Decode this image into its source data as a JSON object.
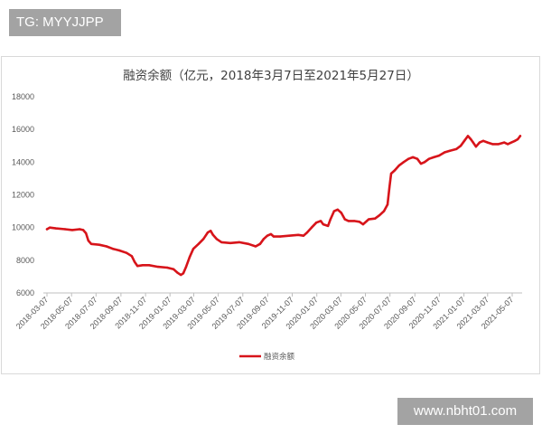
{
  "watermarks": {
    "top_left": "TG: MYYJJPP",
    "bottom_right": "www.nbht01.com"
  },
  "colors": {
    "series_line": "#d7141a",
    "watermark_bg": "#a3a3a3",
    "watermark_text": "#ffffff"
  },
  "chart_data": {
    "type": "line",
    "title": "融资余额（亿元，2018年3月7日至2021年5月27日）",
    "xlabel": "",
    "ylabel": "",
    "xlim": [
      "2018-03-07",
      "2021-05-27"
    ],
    "ylim": [
      6000,
      18000
    ],
    "grid": false,
    "legend": "bottom",
    "ytick_labels": [
      "6000",
      "8000",
      "10000",
      "12000",
      "14000",
      "16000",
      "18000"
    ],
    "xtick_labels": [
      "2018-03-07",
      "2018-05-07",
      "2018-07-07",
      "2018-09-07",
      "2018-11-07",
      "2019-01-07",
      "2019-03-07",
      "2019-05-07",
      "2019-07-07",
      "2019-09-07",
      "2019-11-07",
      "2020-01-07",
      "2020-03-07",
      "2020-05-07",
      "2020-07-07",
      "2020-09-07",
      "2020-11-07",
      "2021-01-07",
      "2021-03-07",
      "2021-05-07"
    ],
    "series": [
      {
        "name": "融资余额",
        "x": [
          "2018-03-07",
          "2018-03-14",
          "2018-03-29",
          "2018-04-21",
          "2018-05-09",
          "2018-05-27",
          "2018-06-05",
          "2018-06-12",
          "2018-06-18",
          "2018-06-25",
          "2018-07-15",
          "2018-08-02",
          "2018-08-18",
          "2018-09-03",
          "2018-09-21",
          "2018-10-04",
          "2018-10-11",
          "2018-10-18",
          "2018-10-31",
          "2018-11-16",
          "2018-12-08",
          "2018-12-31",
          "2019-01-16",
          "2019-01-25",
          "2019-02-03",
          "2019-02-09",
          "2019-02-16",
          "2019-02-25",
          "2019-03-06",
          "2019-03-19",
          "2019-03-31",
          "2019-04-11",
          "2019-04-18",
          "2019-04-24",
          "2019-05-03",
          "2019-05-15",
          "2019-06-06",
          "2019-06-28",
          "2019-07-21",
          "2019-08-08",
          "2019-08-19",
          "2019-08-28",
          "2019-09-06",
          "2019-09-15",
          "2019-09-22",
          "2019-10-08",
          "2019-10-30",
          "2019-11-22",
          "2019-12-05",
          "2019-12-14",
          "2019-12-25",
          "2020-01-06",
          "2020-01-17",
          "2020-01-23",
          "2020-02-04",
          "2020-02-10",
          "2020-02-19",
          "2020-02-28",
          "2020-03-08",
          "2020-03-17",
          "2020-03-26",
          "2020-04-09",
          "2020-04-22",
          "2020-05-01",
          "2020-05-15",
          "2020-05-31",
          "2020-06-11",
          "2020-06-22",
          "2020-07-01",
          "2020-07-06",
          "2020-07-10",
          "2020-07-19",
          "2020-07-30",
          "2020-08-10",
          "2020-08-22",
          "2020-09-02",
          "2020-09-13",
          "2020-09-22",
          "2020-10-01",
          "2020-10-12",
          "2020-10-24",
          "2020-11-06",
          "2020-11-20",
          "2020-12-03",
          "2020-12-19",
          "2020-12-30",
          "2021-01-08",
          "2021-01-17",
          "2021-01-24",
          "2021-01-30",
          "2021-02-06",
          "2021-02-15",
          "2021-02-24",
          "2021-03-07",
          "2021-03-19",
          "2021-04-03",
          "2021-04-17",
          "2021-04-26",
          "2021-05-05",
          "2021-05-14",
          "2021-05-21",
          "2021-05-27"
        ],
        "y": [
          9900,
          10000,
          9950,
          9900,
          9850,
          9900,
          9850,
          9650,
          9200,
          9000,
          8950,
          8850,
          8700,
          8600,
          8450,
          8250,
          7900,
          7650,
          7700,
          7700,
          7600,
          7550,
          7450,
          7250,
          7100,
          7200,
          7600,
          8200,
          8700,
          9000,
          9300,
          9700,
          9800,
          9550,
          9300,
          9100,
          9050,
          9100,
          9000,
          8850,
          9000,
          9300,
          9500,
          9600,
          9450,
          9450,
          9500,
          9550,
          9500,
          9700,
          10000,
          10300,
          10400,
          10200,
          10100,
          10500,
          11000,
          11100,
          10900,
          10500,
          10400,
          10400,
          10350,
          10200,
          10500,
          10550,
          10750,
          11000,
          11400,
          12500,
          13300,
          13500,
          13800,
          14000,
          14200,
          14300,
          14200,
          13900,
          14000,
          14200,
          14300,
          14400,
          14600,
          14700,
          14800,
          15000,
          15300,
          15600,
          15400,
          15200,
          14950,
          15200,
          15300,
          15200,
          15100,
          15100,
          15200,
          15100,
          15200,
          15300,
          15400,
          15600
        ]
      }
    ]
  }
}
